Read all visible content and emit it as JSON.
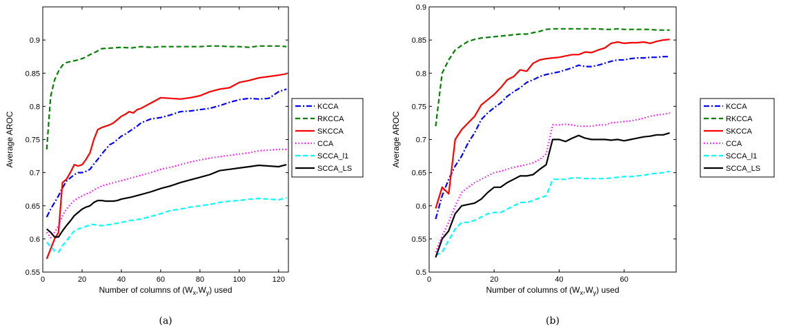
{
  "chart_data": [
    {
      "type": "line",
      "caption": "(a)",
      "title": "",
      "xlabel": "Number of columns of (W",
      "xlabel_sub1": "x",
      "xlabel_mid": ",W",
      "xlabel_sub2": "y",
      "xlabel_end": ") used",
      "ylabel": "Average AROC",
      "xlim": [
        0,
        125
      ],
      "ylim": [
        0.55,
        0.95
      ],
      "xticks": [
        0,
        20,
        40,
        60,
        80,
        100,
        120
      ],
      "yticks": [
        0.55,
        0.6,
        0.65,
        0.7,
        0.75,
        0.8,
        0.85,
        0.9
      ],
      "grid": false,
      "legend_position": "outside-right",
      "series": [
        {
          "name": "KCCA",
          "color": "#0000ff",
          "dash": "dashdot",
          "x": [
            2,
            4,
            6,
            8,
            10,
            12,
            14,
            16,
            18,
            20,
            22,
            24,
            26,
            28,
            30,
            32,
            34,
            36,
            38,
            40,
            42,
            44,
            46,
            48,
            50,
            55,
            60,
            65,
            70,
            75,
            80,
            85,
            90,
            95,
            100,
            105,
            110,
            115,
            120,
            124
          ],
          "y": [
            0.633,
            0.645,
            0.655,
            0.665,
            0.677,
            0.687,
            0.692,
            0.697,
            0.7,
            0.7,
            0.702,
            0.705,
            0.713,
            0.72,
            0.728,
            0.735,
            0.742,
            0.745,
            0.75,
            0.755,
            0.758,
            0.762,
            0.766,
            0.77,
            0.775,
            0.781,
            0.783,
            0.787,
            0.792,
            0.793,
            0.795,
            0.797,
            0.801,
            0.806,
            0.81,
            0.812,
            0.811,
            0.812,
            0.822,
            0.826
          ]
        },
        {
          "name": "RKCCA",
          "color": "#008000",
          "dash": "dashed",
          "x": [
            2,
            4,
            6,
            8,
            10,
            12,
            15,
            18,
            21,
            24,
            27,
            30,
            35,
            40,
            45,
            50,
            55,
            60,
            65,
            70,
            75,
            80,
            85,
            90,
            95,
            100,
            105,
            110,
            115,
            120,
            124
          ],
          "y": [
            0.735,
            0.815,
            0.84,
            0.853,
            0.862,
            0.866,
            0.868,
            0.87,
            0.873,
            0.878,
            0.882,
            0.887,
            0.888,
            0.889,
            0.888,
            0.89,
            0.889,
            0.89,
            0.89,
            0.89,
            0.89,
            0.89,
            0.891,
            0.891,
            0.89,
            0.89,
            0.889,
            0.891,
            0.891,
            0.891,
            0.89
          ]
        },
        {
          "name": "SKCCA",
          "color": "#ff0000",
          "dash": "solid",
          "x": [
            2,
            4,
            6,
            8,
            10,
            12,
            14,
            16,
            18,
            20,
            22,
            24,
            26,
            28,
            30,
            32,
            34,
            36,
            38,
            40,
            42,
            44,
            46,
            48,
            50,
            55,
            60,
            65,
            70,
            75,
            80,
            85,
            90,
            95,
            100,
            105,
            110,
            115,
            120,
            124
          ],
          "y": [
            0.57,
            0.585,
            0.6,
            0.61,
            0.685,
            0.69,
            0.7,
            0.712,
            0.71,
            0.712,
            0.72,
            0.73,
            0.75,
            0.765,
            0.768,
            0.77,
            0.772,
            0.775,
            0.78,
            0.785,
            0.788,
            0.792,
            0.79,
            0.795,
            0.797,
            0.805,
            0.813,
            0.812,
            0.811,
            0.813,
            0.816,
            0.822,
            0.826,
            0.828,
            0.836,
            0.839,
            0.843,
            0.845,
            0.847,
            0.849
          ]
        },
        {
          "name": "CCA",
          "color": "#ff00ff",
          "dash": "dotted",
          "x": [
            2,
            4,
            6,
            8,
            10,
            12,
            14,
            16,
            18,
            20,
            22,
            24,
            26,
            28,
            30,
            35,
            40,
            45,
            50,
            55,
            60,
            65,
            70,
            75,
            80,
            85,
            90,
            95,
            100,
            105,
            110,
            115,
            120,
            124
          ],
          "y": [
            0.61,
            0.602,
            0.61,
            0.62,
            0.635,
            0.645,
            0.652,
            0.658,
            0.662,
            0.665,
            0.668,
            0.67,
            0.674,
            0.677,
            0.68,
            0.684,
            0.688,
            0.692,
            0.696,
            0.7,
            0.705,
            0.708,
            0.712,
            0.716,
            0.719,
            0.722,
            0.724,
            0.726,
            0.728,
            0.73,
            0.733,
            0.734,
            0.735,
            0.735
          ]
        },
        {
          "name": "SCCA_l1",
          "color": "#00ffff",
          "dash": "dashed",
          "x": [
            2,
            4,
            6,
            8,
            10,
            12,
            14,
            16,
            18,
            20,
            25,
            30,
            35,
            40,
            45,
            50,
            55,
            60,
            65,
            70,
            75,
            80,
            85,
            90,
            95,
            100,
            105,
            110,
            115,
            120,
            124
          ],
          "y": [
            0.595,
            0.588,
            0.582,
            0.58,
            0.59,
            0.597,
            0.605,
            0.612,
            0.615,
            0.617,
            0.622,
            0.62,
            0.622,
            0.625,
            0.628,
            0.63,
            0.634,
            0.638,
            0.643,
            0.645,
            0.648,
            0.65,
            0.652,
            0.655,
            0.657,
            0.658,
            0.66,
            0.661,
            0.66,
            0.659,
            0.662
          ]
        },
        {
          "name": "SCCA_LS",
          "color": "#000000",
          "dash": "solid",
          "x": [
            2,
            4,
            6,
            8,
            10,
            12,
            14,
            16,
            18,
            20,
            22,
            24,
            26,
            28,
            30,
            32,
            34,
            36,
            38,
            40,
            45,
            50,
            55,
            60,
            65,
            70,
            75,
            80,
            85,
            90,
            95,
            100,
            105,
            110,
            115,
            120,
            124
          ],
          "y": [
            0.615,
            0.61,
            0.603,
            0.603,
            0.612,
            0.62,
            0.627,
            0.635,
            0.64,
            0.645,
            0.648,
            0.65,
            0.655,
            0.658,
            0.658,
            0.657,
            0.657,
            0.657,
            0.658,
            0.66,
            0.663,
            0.667,
            0.671,
            0.676,
            0.68,
            0.685,
            0.689,
            0.693,
            0.697,
            0.703,
            0.705,
            0.707,
            0.709,
            0.711,
            0.71,
            0.709,
            0.712
          ]
        }
      ]
    },
    {
      "type": "line",
      "caption": "(b)",
      "title": "",
      "xlabel": "Number of columns of (W",
      "xlabel_sub1": "x",
      "xlabel_mid": ",W",
      "xlabel_sub2": "y",
      "xlabel_end": ") used",
      "ylabel": "Average AROC",
      "xlim": [
        0,
        76
      ],
      "ylim": [
        0.5,
        0.9
      ],
      "xticks": [
        0,
        20,
        40,
        60
      ],
      "yticks": [
        0.5,
        0.55,
        0.6,
        0.65,
        0.7,
        0.75,
        0.8,
        0.85,
        0.9
      ],
      "grid": false,
      "legend_position": "outside-right",
      "series": [
        {
          "name": "KCCA",
          "color": "#0000ff",
          "dash": "dashdot",
          "x": [
            2,
            4,
            6,
            8,
            10,
            12,
            14,
            16,
            18,
            20,
            22,
            24,
            26,
            28,
            30,
            32,
            34,
            36,
            38,
            40,
            42,
            44,
            46,
            48,
            50,
            52,
            54,
            56,
            58,
            60,
            62,
            64,
            66,
            68,
            70,
            72,
            74
          ],
          "y": [
            0.58,
            0.615,
            0.64,
            0.66,
            0.675,
            0.695,
            0.71,
            0.73,
            0.74,
            0.748,
            0.755,
            0.765,
            0.772,
            0.778,
            0.786,
            0.79,
            0.795,
            0.798,
            0.8,
            0.802,
            0.805,
            0.808,
            0.812,
            0.81,
            0.81,
            0.812,
            0.815,
            0.818,
            0.82,
            0.82,
            0.822,
            0.823,
            0.823,
            0.824,
            0.824,
            0.825,
            0.825
          ]
        },
        {
          "name": "RKCCA",
          "color": "#008000",
          "dash": "dashed",
          "x": [
            2,
            4,
            6,
            8,
            10,
            12,
            14,
            16,
            18,
            20,
            22,
            24,
            26,
            28,
            30,
            32,
            34,
            36,
            38,
            40,
            42,
            44,
            46,
            48,
            50,
            52,
            54,
            56,
            58,
            60,
            62,
            64,
            66,
            68,
            70,
            72,
            74
          ],
          "y": [
            0.72,
            0.8,
            0.82,
            0.835,
            0.842,
            0.848,
            0.851,
            0.853,
            0.854,
            0.855,
            0.856,
            0.857,
            0.858,
            0.859,
            0.859,
            0.861,
            0.863,
            0.866,
            0.867,
            0.867,
            0.867,
            0.867,
            0.867,
            0.867,
            0.867,
            0.867,
            0.866,
            0.866,
            0.867,
            0.866,
            0.866,
            0.866,
            0.866,
            0.866,
            0.865,
            0.865,
            0.865
          ]
        },
        {
          "name": "SKCCA",
          "color": "#ff0000",
          "dash": "solid",
          "x": [
            2,
            4,
            6,
            8,
            10,
            12,
            14,
            16,
            18,
            20,
            22,
            24,
            26,
            28,
            30,
            32,
            34,
            36,
            38,
            40,
            42,
            44,
            46,
            48,
            50,
            52,
            54,
            56,
            58,
            60,
            62,
            64,
            66,
            68,
            70,
            72,
            74
          ],
          "y": [
            0.596,
            0.628,
            0.618,
            0.7,
            0.715,
            0.725,
            0.735,
            0.752,
            0.76,
            0.768,
            0.778,
            0.79,
            0.795,
            0.805,
            0.803,
            0.815,
            0.82,
            0.822,
            0.823,
            0.824,
            0.826,
            0.828,
            0.828,
            0.832,
            0.831,
            0.835,
            0.838,
            0.845,
            0.847,
            0.845,
            0.846,
            0.846,
            0.847,
            0.845,
            0.848,
            0.85,
            0.851
          ]
        },
        {
          "name": "CCA",
          "color": "#ff00ff",
          "dash": "dotted",
          "x": [
            2,
            4,
            6,
            8,
            10,
            12,
            14,
            16,
            18,
            20,
            22,
            24,
            26,
            28,
            30,
            32,
            34,
            36,
            38,
            40,
            42,
            44,
            46,
            48,
            50,
            52,
            54,
            56,
            58,
            60,
            62,
            64,
            66,
            68,
            70,
            72,
            74
          ],
          "y": [
            0.53,
            0.555,
            0.575,
            0.6,
            0.62,
            0.628,
            0.635,
            0.64,
            0.645,
            0.65,
            0.652,
            0.655,
            0.658,
            0.66,
            0.662,
            0.665,
            0.67,
            0.678,
            0.722,
            0.722,
            0.723,
            0.722,
            0.72,
            0.72,
            0.72,
            0.722,
            0.722,
            0.725,
            0.726,
            0.727,
            0.728,
            0.73,
            0.732,
            0.735,
            0.737,
            0.738,
            0.74
          ]
        },
        {
          "name": "SCCA_l1",
          "color": "#00ffff",
          "dash": "dashed",
          "x": [
            2,
            4,
            6,
            8,
            10,
            12,
            14,
            16,
            18,
            20,
            22,
            24,
            26,
            28,
            30,
            32,
            34,
            36,
            38,
            40,
            42,
            44,
            46,
            48,
            50,
            52,
            54,
            56,
            58,
            60,
            62,
            64,
            66,
            68,
            70,
            72,
            74
          ],
          "y": [
            0.525,
            0.53,
            0.548,
            0.565,
            0.575,
            0.575,
            0.578,
            0.583,
            0.588,
            0.59,
            0.59,
            0.595,
            0.6,
            0.605,
            0.605,
            0.608,
            0.612,
            0.615,
            0.64,
            0.64,
            0.64,
            0.642,
            0.642,
            0.641,
            0.641,
            0.641,
            0.641,
            0.642,
            0.643,
            0.644,
            0.644,
            0.645,
            0.646,
            0.648,
            0.649,
            0.65,
            0.652
          ]
        },
        {
          "name": "SCCA_LS",
          "color": "#000000",
          "dash": "solid",
          "x": [
            2,
            4,
            6,
            8,
            10,
            12,
            14,
            16,
            18,
            20,
            22,
            24,
            26,
            28,
            30,
            32,
            34,
            36,
            38,
            40,
            42,
            44,
            46,
            48,
            50,
            52,
            54,
            56,
            58,
            60,
            62,
            64,
            66,
            68,
            70,
            72,
            74
          ],
          "y": [
            0.522,
            0.55,
            0.562,
            0.588,
            0.6,
            0.602,
            0.604,
            0.61,
            0.62,
            0.628,
            0.628,
            0.635,
            0.64,
            0.645,
            0.645,
            0.647,
            0.655,
            0.662,
            0.7,
            0.7,
            0.697,
            0.702,
            0.706,
            0.702,
            0.7,
            0.7,
            0.7,
            0.699,
            0.7,
            0.698,
            0.7,
            0.702,
            0.704,
            0.705,
            0.707,
            0.707,
            0.71
          ]
        }
      ]
    }
  ]
}
